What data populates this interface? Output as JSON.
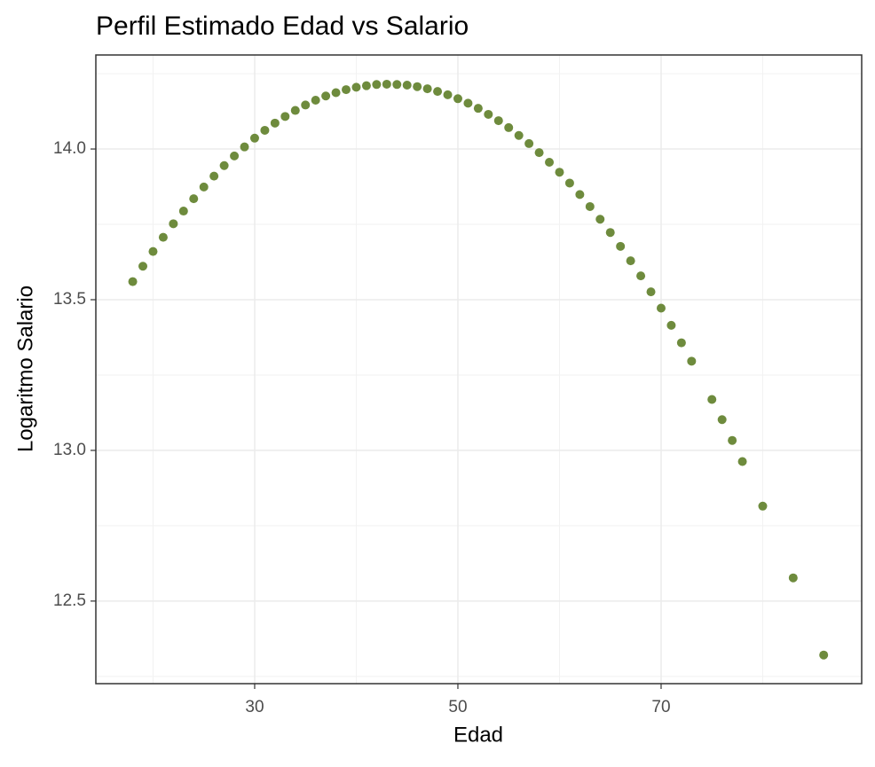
{
  "chart_data": {
    "type": "scatter",
    "title": "Perfil Estimado Edad vs Salario",
    "x_label": "Edad",
    "y_label": "Logaritmo Salario",
    "color": "#6e8b3d",
    "x": [
      18,
      19,
      20,
      21,
      22,
      23,
      24,
      25,
      26,
      27,
      28,
      29,
      30,
      31,
      32,
      33,
      34,
      35,
      36,
      37,
      38,
      39,
      40,
      41,
      42,
      43,
      44,
      45,
      46,
      47,
      48,
      49,
      50,
      51,
      52,
      53,
      54,
      55,
      56,
      57,
      58,
      59,
      60,
      61,
      62,
      63,
      64,
      65,
      66,
      67,
      68,
      69,
      70,
      71,
      72,
      73,
      75,
      76,
      77,
      78,
      80,
      83,
      86
    ],
    "values": [
      13.56,
      13.611,
      13.66,
      13.707,
      13.752,
      13.794,
      13.835,
      13.874,
      13.91,
      13.945,
      13.977,
      14.007,
      14.036,
      14.062,
      14.086,
      14.108,
      14.128,
      14.146,
      14.162,
      14.176,
      14.187,
      14.197,
      14.205,
      14.21,
      14.214,
      14.215,
      14.214,
      14.212,
      14.207,
      14.2,
      14.191,
      14.18,
      14.167,
      14.152,
      14.135,
      14.115,
      14.094,
      14.071,
      14.045,
      14.018,
      13.988,
      13.956,
      13.923,
      13.887,
      13.849,
      13.809,
      13.767,
      13.723,
      13.677,
      13.629,
      13.579,
      13.526,
      13.472,
      13.415,
      13.357,
      13.296,
      13.169,
      13.102,
      13.033,
      12.963,
      12.815,
      12.577,
      12.321
    ],
    "xlim": [
      14.37,
      89.74
    ],
    "xticks": [
      30,
      50,
      70
    ],
    "ylim": [
      12.226,
      14.312
    ],
    "yticks": [
      {
        "value": 12.5,
        "label": "12.5"
      },
      {
        "value": 13,
        "label": "13.0"
      },
      {
        "value": 13.5,
        "label": "13.5"
      },
      {
        "value": 14,
        "label": "14.0"
      }
    ],
    "grid": true
  }
}
